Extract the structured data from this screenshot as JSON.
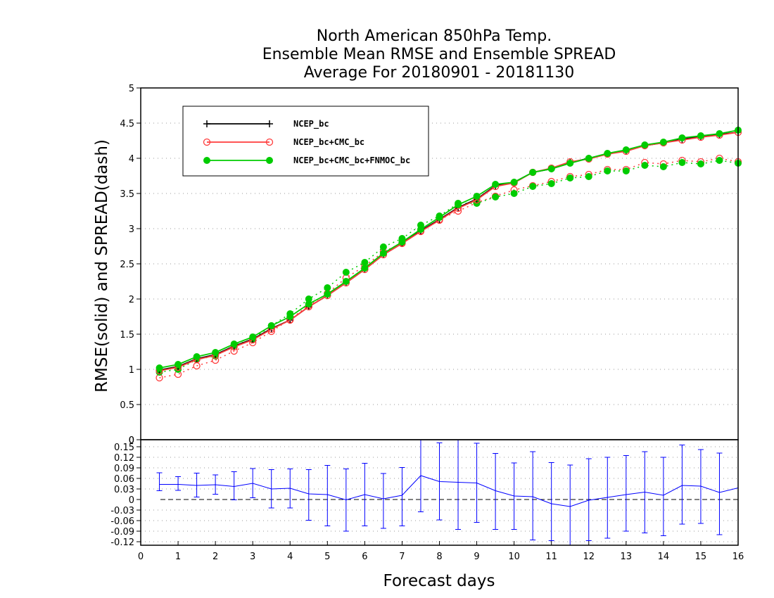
{
  "chart_data": [
    {
      "type": "line",
      "title": [
        "North American 850hPa Temp.",
        "Ensemble Mean RMSE and Ensemble SPREAD",
        "Average For 20180901 - 20181130"
      ],
      "xlabel": "Forecast days",
      "ylabel": "RMSE(solid) and SPREAD(dash)",
      "xlim": [
        0,
        16
      ],
      "ylim": [
        0,
        5
      ],
      "x_ticks": [
        "0",
        "1",
        "2",
        "3",
        "4",
        "5",
        "6",
        "7",
        "8",
        "9",
        "10",
        "11",
        "12",
        "13",
        "14",
        "15",
        "16"
      ],
      "y_ticks": [
        "0",
        "0.5",
        "1",
        "1.5",
        "2",
        "2.5",
        "3",
        "3.5",
        "4",
        "4.5",
        "5"
      ],
      "grid": true,
      "legend_position": "top-left",
      "x": [
        0.5,
        1,
        1.5,
        2,
        2.5,
        3,
        3.5,
        4,
        4.5,
        5,
        5.5,
        6,
        6.5,
        7,
        7.5,
        8,
        8.5,
        9,
        9.5,
        10,
        10.5,
        11,
        11.5,
        12,
        12.5,
        13,
        13.5,
        14,
        14.5,
        15,
        15.5,
        16
      ],
      "series": [
        {
          "name": "NCEP_bc",
          "color": "#000000",
          "marker": "plus",
          "rmse": [
            0.99,
            1.04,
            1.15,
            1.21,
            1.33,
            1.43,
            1.58,
            1.7,
            1.89,
            2.05,
            2.23,
            2.42,
            2.63,
            2.79,
            2.97,
            3.13,
            3.3,
            3.42,
            3.61,
            3.66,
            3.8,
            3.85,
            3.94,
            4.0,
            4.06,
            4.11,
            4.18,
            4.22,
            4.27,
            4.31,
            4.34,
            4.37
          ],
          "spread": []
        },
        {
          "name": "NCEP_bc+CMC_bc",
          "color": "#ff3b3b",
          "marker": "open-circle",
          "rmse": [
            0.98,
            1.03,
            1.14,
            1.2,
            1.32,
            1.42,
            1.57,
            1.7,
            1.89,
            2.05,
            2.23,
            2.42,
            2.63,
            2.79,
            2.96,
            3.12,
            3.29,
            3.41,
            3.6,
            3.65,
            3.8,
            3.86,
            3.95,
            3.99,
            4.06,
            4.1,
            4.18,
            4.22,
            4.26,
            4.3,
            4.33,
            4.37
          ],
          "spread": [
            0.88,
            0.93,
            1.05,
            1.13,
            1.26,
            1.38,
            1.54,
            1.71,
            1.91,
            2.08,
            2.3,
            2.47,
            2.67,
            2.8,
            2.97,
            3.13,
            3.25,
            3.37,
            3.46,
            3.55,
            3.61,
            3.67,
            3.74,
            3.77,
            3.84,
            3.84,
            3.94,
            3.92,
            3.97,
            3.95,
            4.0,
            3.95
          ]
        },
        {
          "name": "NCEP_bc+CMC_bc+FNMOC_bc",
          "color": "#00cc00",
          "marker": "filled-circle",
          "rmse": [
            1.02,
            1.07,
            1.18,
            1.24,
            1.36,
            1.46,
            1.62,
            1.75,
            1.93,
            2.07,
            2.25,
            2.44,
            2.65,
            2.81,
            2.99,
            3.16,
            3.34,
            3.46,
            3.63,
            3.66,
            3.8,
            3.85,
            3.93,
            4.0,
            4.07,
            4.12,
            4.19,
            4.23,
            4.29,
            4.32,
            4.35,
            4.4
          ],
          "spread": [
            0.96,
            1.0,
            1.14,
            1.19,
            1.34,
            1.43,
            1.62,
            1.79,
            2.0,
            2.16,
            2.38,
            2.52,
            2.74,
            2.86,
            3.05,
            3.18,
            3.36,
            3.36,
            3.45,
            3.5,
            3.6,
            3.64,
            3.72,
            3.74,
            3.82,
            3.82,
            3.9,
            3.88,
            3.94,
            3.92,
            3.97,
            3.93
          ]
        }
      ]
    },
    {
      "type": "line",
      "xlabel": "Forecast days",
      "xlim": [
        0,
        16
      ],
      "ylim": [
        -0.13,
        0.17
      ],
      "y_ticks": [
        "-0.12",
        "-0.09",
        "-0.06",
        "-0.03",
        "0",
        "0.03",
        "0.06",
        "0.09",
        "0.12",
        "0.15"
      ],
      "top_tick": "0",
      "error_bars": true,
      "color": "#0000ff",
      "x": [
        0.5,
        1,
        1.5,
        2,
        2.5,
        3,
        3.5,
        4,
        4.5,
        5,
        5.5,
        6,
        6.5,
        7,
        7.5,
        8,
        8.5,
        9,
        9.5,
        10,
        10.5,
        11,
        11.5,
        12,
        12.5,
        13,
        13.5,
        14,
        14.5,
        15,
        15.5,
        16
      ],
      "mean": [
        0.043,
        0.043,
        0.04,
        0.042,
        0.037,
        0.046,
        0.03,
        0.032,
        0.016,
        0.014,
        -0.001,
        0.014,
        0.002,
        0.012,
        0.068,
        0.051,
        0.049,
        0.047,
        0.025,
        0.01,
        0.008,
        -0.012,
        -0.02,
        -0.002,
        0.006,
        0.014,
        0.021,
        0.012,
        0.04,
        0.038,
        0.02,
        0.033
      ],
      "lower": [
        0.025,
        0.026,
        0.007,
        0.015,
        -0.001,
        0.005,
        -0.024,
        -0.024,
        -0.059,
        -0.075,
        -0.09,
        -0.075,
        -0.082,
        -0.075,
        -0.035,
        -0.058,
        -0.085,
        -0.065,
        -0.085,
        -0.085,
        -0.115,
        -0.117,
        -0.13,
        -0.117,
        -0.11,
        -0.09,
        -0.095,
        -0.103,
        -0.07,
        -0.068,
        -0.1,
        null
      ],
      "upper": [
        0.076,
        0.065,
        0.075,
        0.07,
        0.079,
        0.088,
        0.085,
        0.087,
        0.085,
        0.097,
        0.087,
        0.103,
        0.074,
        0.091,
        0.171,
        0.161,
        0.183,
        0.16,
        0.131,
        0.104,
        0.136,
        0.105,
        0.098,
        0.116,
        0.12,
        0.125,
        0.136,
        0.12,
        0.155,
        0.142,
        0.132,
        null
      ]
    }
  ]
}
